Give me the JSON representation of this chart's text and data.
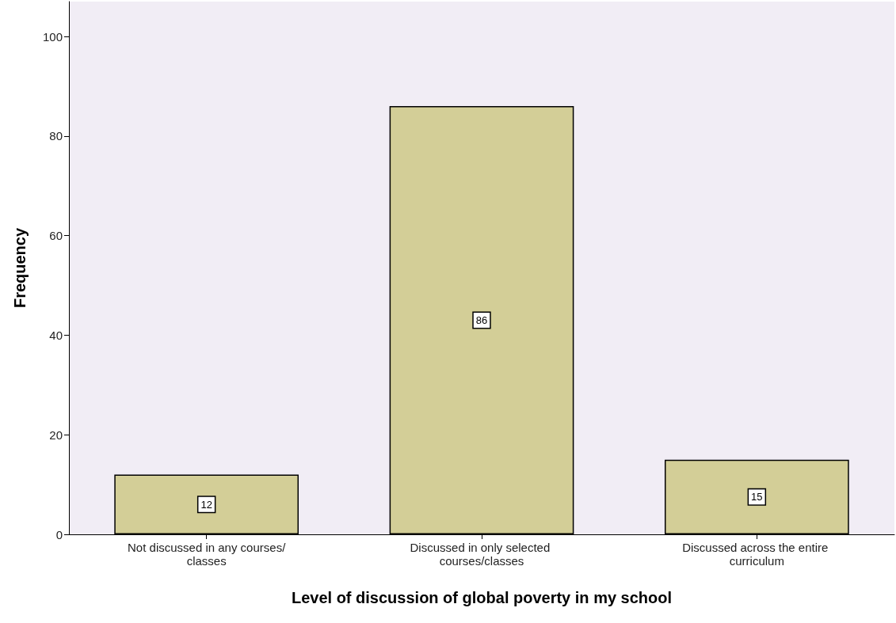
{
  "chart_data": {
    "type": "bar",
    "xlabel": "Level of discussion of global poverty in my school",
    "ylabel": "Frequency",
    "categories": [
      "Not discussed in any courses/classes",
      "Discussed in only selected courses/classes",
      "Discussed across the entire curriculum"
    ],
    "values": [
      12,
      86,
      15
    ],
    "color": "#d3ce97",
    "data_labels": true,
    "ylim": [
      0,
      107
    ],
    "yticks": [
      0,
      20,
      40,
      60,
      80,
      100
    ],
    "grid": false
  }
}
